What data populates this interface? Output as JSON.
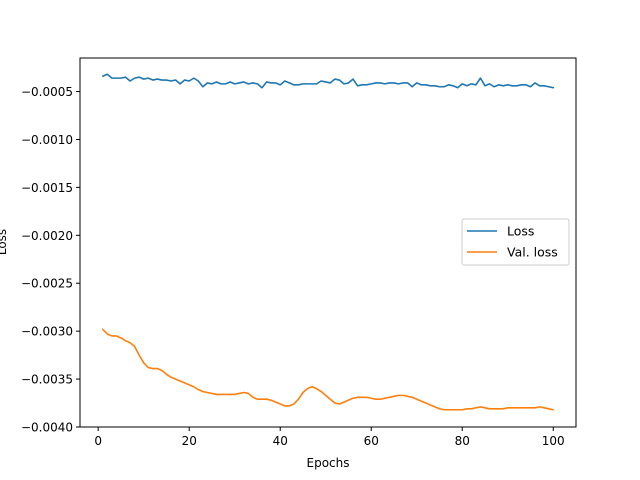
{
  "chart_data": {
    "type": "line",
    "xlabel": "Epochs",
    "ylabel": "Loss",
    "xlim": [
      -4,
      105
    ],
    "ylim": [
      -0.004,
      -0.00015
    ],
    "xticks": [
      0,
      20,
      40,
      60,
      80,
      100
    ],
    "yticks": [
      -0.0005,
      -0.001,
      -0.0015,
      -0.002,
      -0.0025,
      -0.003,
      -0.0035,
      -0.004
    ],
    "ytick_labels": [
      "−0.0005",
      "−0.0010",
      "−0.0015",
      "−0.0020",
      "−0.0025",
      "−0.0030",
      "−0.0035",
      "−0.0040"
    ],
    "xtick_labels": [
      "0",
      "20",
      "40",
      "60",
      "80",
      "100"
    ],
    "grid": false,
    "legend_position": "center-right",
    "series": [
      {
        "name": "Loss",
        "color": "#1f77b4",
        "x": [
          1,
          2,
          3,
          4,
          5,
          6,
          7,
          8,
          9,
          10,
          11,
          12,
          13,
          14,
          15,
          16,
          17,
          18,
          19,
          20,
          21,
          22,
          23,
          24,
          25,
          26,
          27,
          28,
          29,
          30,
          31,
          32,
          33,
          34,
          35,
          36,
          37,
          38,
          39,
          40,
          41,
          42,
          43,
          44,
          45,
          46,
          47,
          48,
          49,
          50,
          51,
          52,
          53,
          54,
          55,
          56,
          57,
          58,
          59,
          60,
          61,
          62,
          63,
          64,
          65,
          66,
          67,
          68,
          69,
          70,
          71,
          72,
          73,
          74,
          75,
          76,
          77,
          78,
          79,
          80,
          81,
          82,
          83,
          84,
          85,
          86,
          87,
          88,
          89,
          90,
          91,
          92,
          93,
          94,
          95,
          96,
          97,
          98,
          99,
          100
        ],
        "values": [
          -0.00034,
          -0.00032,
          -0.00036,
          -0.00036,
          -0.00036,
          -0.00035,
          -0.00039,
          -0.00036,
          -0.00035,
          -0.00037,
          -0.00036,
          -0.00038,
          -0.00037,
          -0.00038,
          -0.00038,
          -0.00039,
          -0.00038,
          -0.00042,
          -0.00038,
          -0.00039,
          -0.00036,
          -0.00039,
          -0.00045,
          -0.00041,
          -0.00042,
          -0.0004,
          -0.00042,
          -0.00042,
          -0.0004,
          -0.00042,
          -0.00041,
          -0.0004,
          -0.00042,
          -0.00041,
          -0.00042,
          -0.00046,
          -0.0004,
          -0.00041,
          -0.00041,
          -0.00043,
          -0.00039,
          -0.00041,
          -0.00043,
          -0.00043,
          -0.00042,
          -0.00042,
          -0.00042,
          -0.00042,
          -0.00039,
          -0.0004,
          -0.00041,
          -0.00037,
          -0.00038,
          -0.00042,
          -0.00041,
          -0.00037,
          -0.00044,
          -0.00043,
          -0.00043,
          -0.00042,
          -0.00041,
          -0.00041,
          -0.00042,
          -0.00041,
          -0.00041,
          -0.00042,
          -0.00041,
          -0.00041,
          -0.00045,
          -0.00041,
          -0.00043,
          -0.00043,
          -0.00044,
          -0.00044,
          -0.00045,
          -0.00045,
          -0.00043,
          -0.00044,
          -0.00046,
          -0.00042,
          -0.00044,
          -0.00042,
          -0.00043,
          -0.00036,
          -0.00044,
          -0.00042,
          -0.00045,
          -0.00043,
          -0.00044,
          -0.00043,
          -0.00044,
          -0.00044,
          -0.00043,
          -0.00043,
          -0.00045,
          -0.00041,
          -0.00044,
          -0.00044,
          -0.00045,
          -0.00046
        ]
      },
      {
        "name": "Val. loss",
        "color": "#ff7f0e",
        "x": [
          1,
          2,
          3,
          4,
          5,
          6,
          7,
          8,
          9,
          10,
          11,
          12,
          13,
          14,
          15,
          16,
          17,
          18,
          19,
          20,
          21,
          22,
          23,
          24,
          25,
          26,
          27,
          28,
          29,
          30,
          31,
          32,
          33,
          34,
          35,
          36,
          37,
          38,
          39,
          40,
          41,
          42,
          43,
          44,
          45,
          46,
          47,
          48,
          49,
          50,
          51,
          52,
          53,
          54,
          55,
          56,
          57,
          58,
          59,
          60,
          61,
          62,
          63,
          64,
          65,
          66,
          67,
          68,
          69,
          70,
          71,
          72,
          73,
          74,
          75,
          76,
          77,
          78,
          79,
          80,
          81,
          82,
          83,
          84,
          85,
          86,
          87,
          88,
          89,
          90,
          91,
          92,
          93,
          94,
          95,
          96,
          97,
          98,
          99,
          100
        ],
        "values": [
          -0.00298,
          -0.00303,
          -0.00305,
          -0.00305,
          -0.00307,
          -0.0031,
          -0.00312,
          -0.00316,
          -0.00325,
          -0.00333,
          -0.00338,
          -0.00339,
          -0.00339,
          -0.00341,
          -0.00345,
          -0.00348,
          -0.0035,
          -0.00352,
          -0.00354,
          -0.00356,
          -0.00358,
          -0.00361,
          -0.00363,
          -0.00364,
          -0.00365,
          -0.00366,
          -0.00366,
          -0.00366,
          -0.00366,
          -0.00366,
          -0.00365,
          -0.00364,
          -0.00365,
          -0.00369,
          -0.00371,
          -0.00371,
          -0.00371,
          -0.00372,
          -0.00374,
          -0.00376,
          -0.00378,
          -0.00378,
          -0.00376,
          -0.00371,
          -0.00364,
          -0.0036,
          -0.00358,
          -0.0036,
          -0.00363,
          -0.00367,
          -0.00371,
          -0.00375,
          -0.00376,
          -0.00374,
          -0.00372,
          -0.0037,
          -0.00369,
          -0.00369,
          -0.00369,
          -0.0037,
          -0.00371,
          -0.00371,
          -0.0037,
          -0.00369,
          -0.00368,
          -0.00367,
          -0.00367,
          -0.00368,
          -0.00369,
          -0.00371,
          -0.00373,
          -0.00375,
          -0.00377,
          -0.00379,
          -0.00381,
          -0.00382,
          -0.00382,
          -0.00382,
          -0.00382,
          -0.00382,
          -0.00381,
          -0.00381,
          -0.0038,
          -0.00379,
          -0.0038,
          -0.00381,
          -0.00381,
          -0.00381,
          -0.00381,
          -0.0038,
          -0.0038,
          -0.0038,
          -0.0038,
          -0.0038,
          -0.0038,
          -0.0038,
          -0.00379,
          -0.0038,
          -0.00381,
          -0.00382
        ]
      }
    ]
  }
}
